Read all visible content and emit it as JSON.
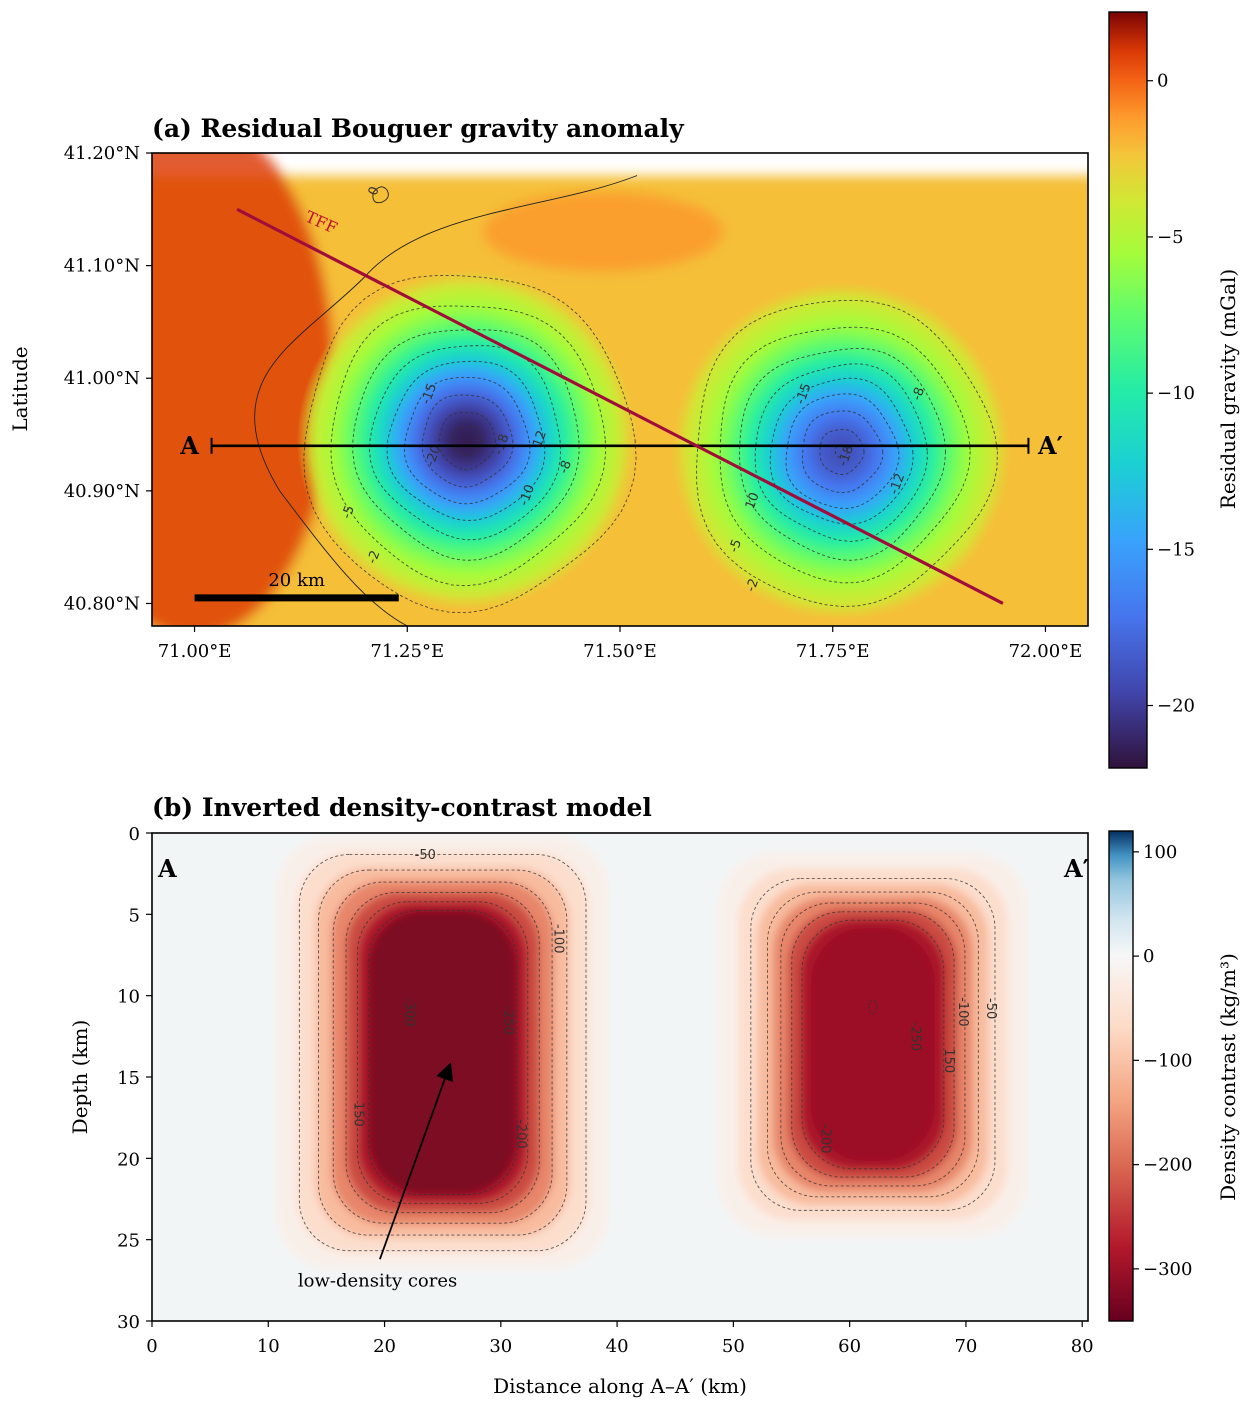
{
  "chart_data": [
    {
      "type": "heatmap",
      "title": "(a) Residual Bouguer gravity anomaly",
      "ylabel": "Latitude",
      "xlabel": "",
      "x_range_deg": [
        70.95,
        72.05
      ],
      "y_range_deg": [
        40.78,
        41.2
      ],
      "data_top_lat": 41.18,
      "x_ticks": [
        "71.00°E",
        "71.25°E",
        "71.50°E",
        "71.75°E",
        "72.00°E"
      ],
      "x_tick_values": [
        71.0,
        71.25,
        71.5,
        71.75,
        72.0
      ],
      "y_ticks": [
        "40.80°N",
        "40.90°N",
        "41.00°N",
        "41.10°N",
        "41.20°N"
      ],
      "y_tick_values": [
        40.8,
        40.9,
        41.0,
        41.1,
        41.2
      ],
      "anomalies": [
        {
          "center_lon": 71.32,
          "center_lat": 40.945,
          "min_mgal": -21.5
        },
        {
          "center_lon": 71.76,
          "center_lat": 40.935,
          "min_mgal": -19.0
        }
      ],
      "background_mgal": 0,
      "contour_levels": [
        0,
        -2,
        -5,
        -8,
        -10,
        -12,
        -15,
        -18,
        -20
      ],
      "contour_labels": [
        {
          "text": "-15",
          "lon": 71.28,
          "lat": 40.985
        },
        {
          "text": "-20",
          "lon": 71.285,
          "lat": 40.93
        },
        {
          "text": "-18",
          "lon": 71.365,
          "lat": 40.94
        },
        {
          "text": "12",
          "lon": 71.41,
          "lat": 40.945
        },
        {
          "text": "-8",
          "lon": 71.44,
          "lat": 40.92
        },
        {
          "text": "-10",
          "lon": 71.395,
          "lat": 40.895
        },
        {
          "text": "-5",
          "lon": 71.185,
          "lat": 40.88
        },
        {
          "text": "-2",
          "lon": 71.215,
          "lat": 40.84
        },
        {
          "text": "0",
          "lon": 71.215,
          "lat": 41.165
        },
        {
          "text": "-15",
          "lon": 71.72,
          "lat": 40.985
        },
        {
          "text": "-18",
          "lon": 71.77,
          "lat": 40.93
        },
        {
          "text": "-8",
          "lon": 71.855,
          "lat": 40.985
        },
        {
          "text": "-12",
          "lon": 71.83,
          "lat": 40.905
        },
        {
          "text": "10",
          "lon": 71.66,
          "lat": 40.89
        },
        {
          "text": "-5",
          "lon": 71.64,
          "lat": 40.85
        },
        {
          "text": "-2",
          "lon": 71.66,
          "lat": 40.815
        }
      ],
      "profile": {
        "start_label": "A",
        "end_label": "A′",
        "start_lon": 71.02,
        "end_lon": 71.98,
        "lat": 40.94
      },
      "fault": {
        "label": "TFF",
        "start_lon": 71.05,
        "start_lat": 41.15,
        "end_lon": 71.95,
        "end_lat": 40.8
      },
      "scale_bar": {
        "label": "20 km",
        "start_lon": 71.0,
        "end_lon": 71.24,
        "lat": 40.805
      },
      "colorbar": {
        "label": "Residual gravity (mGal)",
        "range": [
          -22,
          2.2
        ],
        "ticks": [
          0,
          -5,
          -10,
          -15,
          -20
        ],
        "tick_labels": [
          "0",
          "−5",
          "−10",
          "−15",
          "−20"
        ]
      }
    },
    {
      "type": "heatmap",
      "title": "(b) Inverted density-contrast model",
      "xlabel": "Distance along A–A′ (km)",
      "ylabel": "Depth (km)",
      "xlim": [
        0,
        80.5
      ],
      "ylim": [
        0,
        30
      ],
      "x_ticks": [
        "0",
        "10",
        "20",
        "30",
        "40",
        "50",
        "60",
        "70",
        "80"
      ],
      "x_tick_values": [
        0,
        10,
        20,
        30,
        40,
        50,
        60,
        70,
        80
      ],
      "y_ticks": [
        "0",
        "5",
        "10",
        "15",
        "20",
        "25",
        "30"
      ],
      "y_tick_values": [
        0,
        5,
        10,
        15,
        20,
        25,
        30
      ],
      "bodies": [
        {
          "x_center_km": 25,
          "half_width_km": 6,
          "top_km": 5,
          "bottom_km": 22,
          "min_density": -340
        },
        {
          "x_center_km": 62,
          "half_width_km": 5,
          "top_km": 6,
          "bottom_km": 20,
          "min_density": -300
        }
      ],
      "contour_levels": [
        -50,
        -100,
        -150,
        -200,
        -250,
        -300
      ],
      "contour_labels": [
        {
          "text": "-50",
          "x": 23.5,
          "y": 1.6,
          "rot": 0
        },
        {
          "text": "-100",
          "x": 34.6,
          "y": 6.5,
          "rot": 90
        },
        {
          "text": "-250",
          "x": 30.3,
          "y": 11.5,
          "rot": 90
        },
        {
          "text": "-300",
          "x": 21.8,
          "y": 11,
          "rot": 90
        },
        {
          "text": "150",
          "x": 17.4,
          "y": 17.3,
          "rot": 90
        },
        {
          "text": "-200",
          "x": 31.4,
          "y": 18.5,
          "rot": 90
        },
        {
          "text": "-100",
          "x": 69.4,
          "y": 11,
          "rot": 90
        },
        {
          "text": "-50",
          "x": 71.8,
          "y": 10.8,
          "rot": 90
        },
        {
          "text": "-250",
          "x": 65.3,
          "y": 12.5,
          "rot": 90
        },
        {
          "text": "150",
          "x": 68.2,
          "y": 14,
          "rot": 90
        },
        {
          "text": "-200",
          "x": 57.6,
          "y": 18.8,
          "rot": 90
        }
      ],
      "end_labels": {
        "left": "A",
        "right": "A′"
      },
      "annotation": {
        "text": "low-density cores",
        "text_x": 19.4,
        "text_y": 27.5,
        "arrow_from_x": 19.6,
        "arrow_from_y": 26.2,
        "arrow_to_x": 25.6,
        "arrow_to_y": 14.3
      },
      "colorbar": {
        "label": "Density contrast (kg/m³)",
        "range": [
          -350,
          120
        ],
        "ticks": [
          100,
          0,
          -100,
          -200,
          -300
        ],
        "tick_labels": [
          "100",
          "0",
          "−100",
          "−200",
          "−300"
        ]
      }
    }
  ]
}
